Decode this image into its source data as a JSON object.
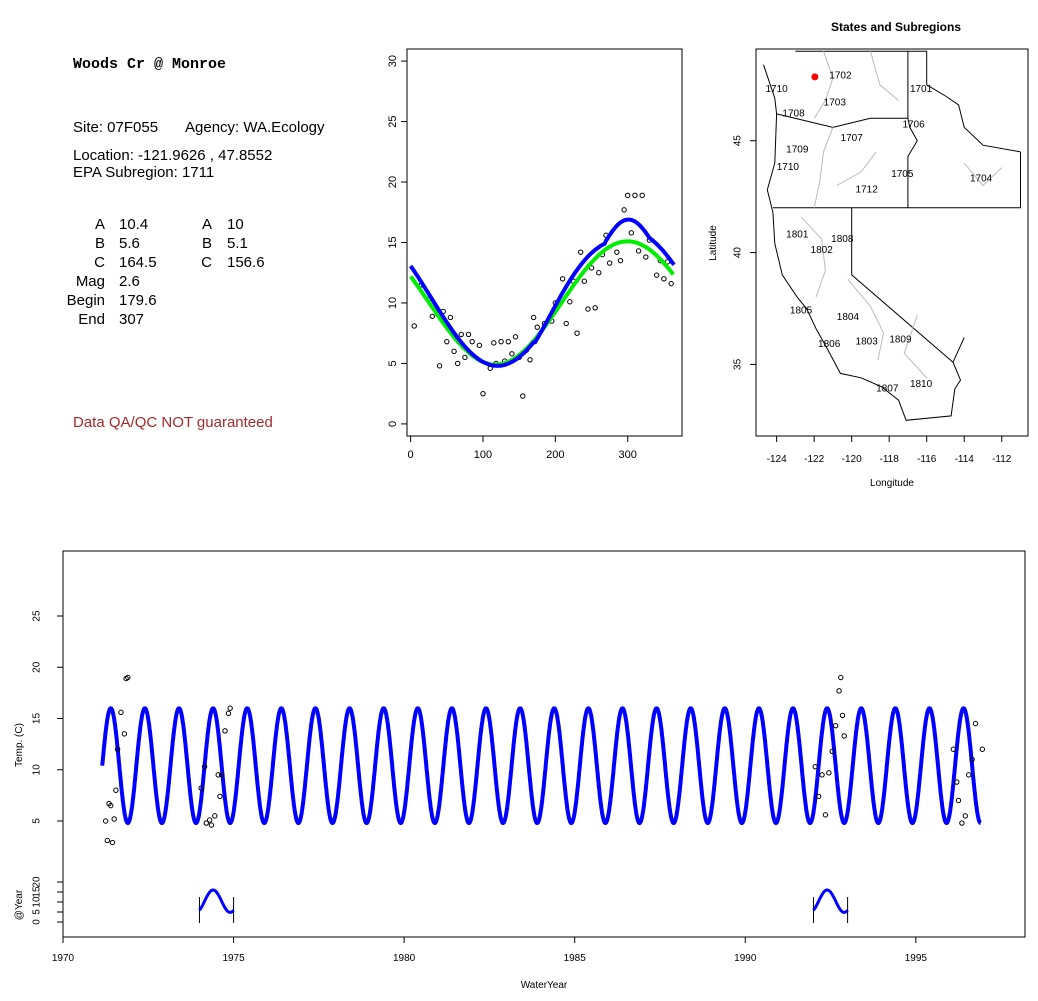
{
  "site": {
    "title": "Woods Cr @ Monroe",
    "site_label": "Site: 07F055",
    "agency_label": "Agency: WA.Ecology",
    "location_label": "Location: -121.9626 , 47.8552",
    "subregion_label": "EPA Subregion: 1711",
    "qa_note": "Data QA/QC NOT guaranteed",
    "params_left": [
      {
        "label": "A",
        "value": "10.4"
      },
      {
        "label": "B",
        "value": "5.6"
      },
      {
        "label": "C",
        "value": "164.5"
      },
      {
        "label": "Mag",
        "value": "2.6"
      },
      {
        "label": "Begin",
        "value": "179.6"
      },
      {
        "label": "End",
        "value": "307"
      }
    ],
    "params_right": [
      {
        "label": "A",
        "value": "10"
      },
      {
        "label": "B",
        "value": "5.1"
      },
      {
        "label": "C",
        "value": "156.6"
      }
    ]
  },
  "colors": {
    "fit_primary": "#0000ff",
    "fit_secondary": "#00ee00",
    "marker": "#ff0000",
    "qa_text": "#a52a2a",
    "region_lines": "#bbbbbb"
  },
  "chart_data": [
    {
      "type": "scatter",
      "title": "",
      "xlabel": "",
      "ylabel": "",
      "xlim": [
        -5,
        375
      ],
      "ylim": [
        -1,
        31
      ],
      "xticks": [
        0,
        100,
        200,
        300
      ],
      "yticks": [
        0,
        5,
        10,
        15,
        20,
        25,
        30
      ],
      "points": [
        [
          5,
          8.1
        ],
        [
          15,
          11.5
        ],
        [
          25,
          10.3
        ],
        [
          30,
          8.9
        ],
        [
          40,
          4.8
        ],
        [
          45,
          9.3
        ],
        [
          50,
          6.8
        ],
        [
          55,
          8.8
        ],
        [
          60,
          6.0
        ],
        [
          65,
          5.0
        ],
        [
          70,
          7.4
        ],
        [
          75,
          5.5
        ],
        [
          80,
          7.4
        ],
        [
          85,
          6.8
        ],
        [
          95,
          6.5
        ],
        [
          100,
          2.5
        ],
        [
          110,
          4.6
        ],
        [
          115,
          6.7
        ],
        [
          118,
          5.0
        ],
        [
          125,
          6.8
        ],
        [
          130,
          5.2
        ],
        [
          135,
          6.8
        ],
        [
          140,
          5.8
        ],
        [
          145,
          7.2
        ],
        [
          150,
          5.5
        ],
        [
          155,
          2.3
        ],
        [
          160,
          6.1
        ],
        [
          165,
          5.3
        ],
        [
          170,
          8.8
        ],
        [
          175,
          8.0
        ],
        [
          185,
          8.3
        ],
        [
          195,
          8.5
        ],
        [
          200,
          10.0
        ],
        [
          210,
          12.0
        ],
        [
          215,
          8.3
        ],
        [
          220,
          10.1
        ],
        [
          225,
          11.8
        ],
        [
          230,
          7.5
        ],
        [
          235,
          14.2
        ],
        [
          240,
          11.8
        ],
        [
          245,
          9.5
        ],
        [
          250,
          12.9
        ],
        [
          255,
          9.6
        ],
        [
          260,
          12.5
        ],
        [
          265,
          14.0
        ],
        [
          270,
          15.6
        ],
        [
          275,
          13.3
        ],
        [
          285,
          14.2
        ],
        [
          290,
          13.5
        ],
        [
          295,
          17.7
        ],
        [
          300,
          18.9
        ],
        [
          305,
          15.8
        ],
        [
          310,
          18.9
        ],
        [
          315,
          14.3
        ],
        [
          320,
          18.9
        ],
        [
          325,
          13.8
        ],
        [
          330,
          15.2
        ],
        [
          340,
          12.3
        ],
        [
          345,
          13.5
        ],
        [
          350,
          12.0
        ],
        [
          355,
          13.4
        ],
        [
          360,
          11.6
        ]
      ],
      "series": [
        {
          "color": "#00ee00",
          "params": {
            "A": 10,
            "B": 5.1,
            "C": 156.6
          }
        },
        {
          "color": "#0000ff",
          "params": {
            "A": 10.4,
            "B": 5.6,
            "C": 164.5,
            "Mag": 2.6,
            "Begin": 179.6,
            "End": 307
          }
        }
      ]
    },
    {
      "type": "map",
      "title": "States and Subregions",
      "xlabel": "Longitude",
      "ylabel": "Latitude",
      "xlim": [
        -125.1,
        -110.6
      ],
      "ylim": [
        31.8,
        49.1
      ],
      "xticks": [
        -124,
        -122,
        -120,
        -118,
        -116,
        -114,
        -112
      ],
      "yticks": [
        35,
        40,
        45
      ],
      "site_marker": {
        "lon": -121.9626,
        "lat": 47.8552,
        "color": "#ff0000"
      },
      "subregions": [
        {
          "label": "1702",
          "lon": -120.6,
          "lat": 47.9
        },
        {
          "label": "1701",
          "lon": -116.3,
          "lat": 47.3
        },
        {
          "label": "1710",
          "lon": -124.0,
          "lat": 47.3
        },
        {
          "label": "1703",
          "lon": -120.9,
          "lat": 46.7
        },
        {
          "label": "1708",
          "lon": -123.1,
          "lat": 46.2
        },
        {
          "label": "1706",
          "lon": -116.7,
          "lat": 45.7
        },
        {
          "label": "1707",
          "lon": -120.0,
          "lat": 45.1
        },
        {
          "label": "1709",
          "lon": -122.9,
          "lat": 44.6
        },
        {
          "label": "1710",
          "lon": -123.4,
          "lat": 43.8
        },
        {
          "label": "1705",
          "lon": -117.3,
          "lat": 43.5
        },
        {
          "label": "1704",
          "lon": -113.1,
          "lat": 43.3
        },
        {
          "label": "1712",
          "lon": -119.2,
          "lat": 42.8
        },
        {
          "label": "1801",
          "lon": -122.9,
          "lat": 40.8
        },
        {
          "label": "1808",
          "lon": -120.5,
          "lat": 40.6
        },
        {
          "label": "1802",
          "lon": -121.6,
          "lat": 40.1
        },
        {
          "label": "1805",
          "lon": -122.7,
          "lat": 37.4
        },
        {
          "label": "1804",
          "lon": -120.2,
          "lat": 37.1
        },
        {
          "label": "1806",
          "lon": -121.2,
          "lat": 35.9
        },
        {
          "label": "1803",
          "lon": -119.2,
          "lat": 36.0
        },
        {
          "label": "1809",
          "lon": -117.4,
          "lat": 36.1
        },
        {
          "label": "1807",
          "lon": -118.1,
          "lat": 33.9
        },
        {
          "label": "1810",
          "lon": -116.3,
          "lat": 34.1
        }
      ]
    },
    {
      "type": "line",
      "title": "",
      "xlabel": "WaterYear",
      "ylabel": "Temp. (C)",
      "ylabel2": "@Year",
      "xlim": [
        1970.0,
        1998.2
      ],
      "ylim": [
        0,
        30
      ],
      "xticks": [
        1970,
        1975,
        1980,
        1985,
        1990,
        1995
      ],
      "yticks": [
        5,
        10,
        15,
        20,
        25
      ],
      "yticks2": [
        0,
        5,
        10,
        15,
        20
      ],
      "series_span": [
        1971.15,
        1996.9
      ],
      "fit": {
        "mean": 10.4,
        "amplitude": 5.6
      },
      "points": [
        [
          1971.25,
          5.0
        ],
        [
          1971.3,
          3.1
        ],
        [
          1971.35,
          6.7
        ],
        [
          1971.4,
          6.5
        ],
        [
          1971.45,
          2.9
        ],
        [
          1971.5,
          5.2
        ],
        [
          1971.55,
          8.0
        ],
        [
          1971.6,
          12.0
        ],
        [
          1971.7,
          15.6
        ],
        [
          1971.8,
          13.5
        ],
        [
          1971.85,
          18.9
        ],
        [
          1971.9,
          19.0
        ],
        [
          1974.05,
          8.2
        ],
        [
          1974.15,
          10.3
        ],
        [
          1974.2,
          4.8
        ],
        [
          1974.3,
          5.1
        ],
        [
          1974.35,
          4.6
        ],
        [
          1974.45,
          5.5
        ],
        [
          1974.55,
          9.5
        ],
        [
          1974.6,
          7.4
        ],
        [
          1974.65,
          9.5
        ],
        [
          1974.75,
          13.8
        ],
        [
          1974.85,
          15.5
        ],
        [
          1974.9,
          16.0
        ],
        [
          1992.05,
          10.3
        ],
        [
          1992.15,
          7.4
        ],
        [
          1992.25,
          9.5
        ],
        [
          1992.35,
          5.6
        ],
        [
          1992.45,
          9.7
        ],
        [
          1992.55,
          11.8
        ],
        [
          1992.65,
          14.3
        ],
        [
          1992.75,
          17.7
        ],
        [
          1992.8,
          19.0
        ],
        [
          1992.85,
          15.3
        ],
        [
          1992.9,
          13.3
        ],
        [
          1996.1,
          12.0
        ],
        [
          1996.2,
          8.8
        ],
        [
          1996.25,
          7.0
        ],
        [
          1996.35,
          4.8
        ],
        [
          1996.45,
          5.5
        ],
        [
          1996.55,
          9.5
        ],
        [
          1996.65,
          11.0
        ],
        [
          1996.75,
          14.5
        ],
        [
          1996.95,
          12.0
        ]
      ],
      "year_overlays": [
        {
          "start": 1974.0,
          "end": 1975.0
        },
        {
          "start": 1992.0,
          "end": 1993.0
        }
      ]
    }
  ]
}
